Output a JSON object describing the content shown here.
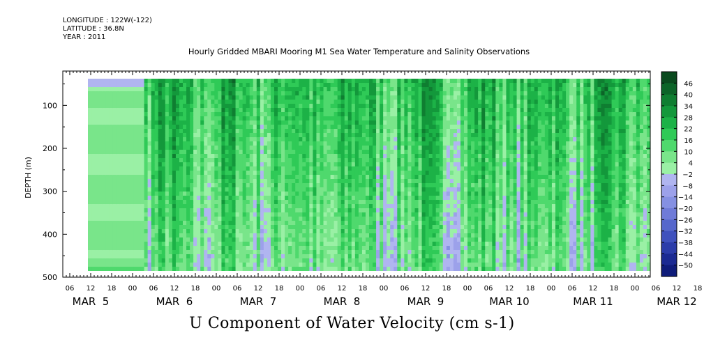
{
  "header": {
    "longitude": "LONGITUDE : 122W(-122)",
    "latitude": "LATITUDE : 36.8N",
    "year": "YEAR : 2011"
  },
  "chart_data": {
    "type": "heatmap",
    "title": "Hourly Gridded MBARI Mooring M1 Sea Water Temperature and Salinity Observations",
    "ylabel": "DEPTH (m)",
    "xlabel": "U Component of Water Velocity (cm s-1)",
    "y_ticks": [
      100,
      200,
      300,
      400,
      500
    ],
    "ylim": [
      500,
      20
    ],
    "data_depth_range": [
      20,
      485
    ],
    "x_hour_ticks": [
      "06",
      "12",
      "18",
      "00",
      "06",
      "12",
      "18",
      "00",
      "06",
      "12",
      "18",
      "00",
      "06",
      "12",
      "18",
      "00",
      "06",
      "12",
      "18",
      "00",
      "06",
      "12",
      "18",
      "00",
      "06",
      "12",
      "18",
      "00",
      "06",
      "12",
      "18",
      "00"
    ],
    "x_day_labels": [
      "MAR  5",
      "MAR  6",
      "MAR  7",
      "MAR  8",
      "MAR  9",
      "MAR 10",
      "MAR 11",
      "MAR 12"
    ],
    "colorbar_levels": [
      46,
      40,
      34,
      28,
      22,
      16,
      10,
      4,
      -2,
      -8,
      -14,
      -20,
      -26,
      -32,
      -38,
      -44,
      -50
    ],
    "colorbar_colors": [
      "#0a4a1e",
      "#0c6428",
      "#0f7e31",
      "#13983b",
      "#1cb247",
      "#2fca57",
      "#4fd96d",
      "#79e58a",
      "#9af0a5",
      "#b0b5f0",
      "#9ca1ea",
      "#8590e2",
      "#6f7bd8",
      "#5667cc",
      "#3f51bd",
      "#2b3ca9",
      "#1b2a92",
      "#0f1c7a"
    ]
  }
}
